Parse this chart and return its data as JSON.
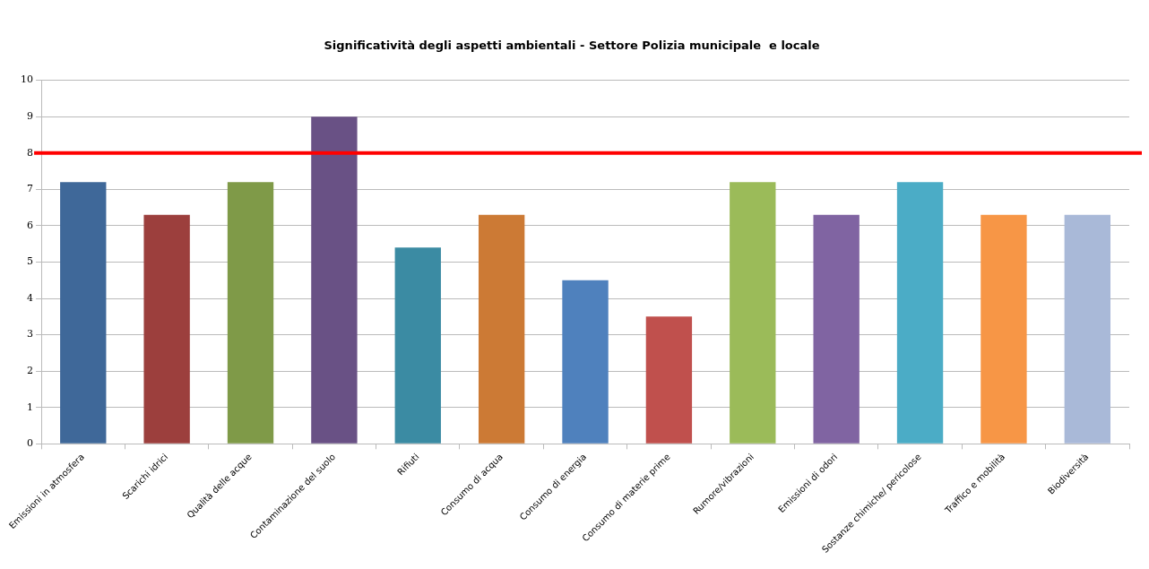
{
  "chart_data": {
    "type": "bar",
    "title": "Significatività degli aspetti ambientali - Settore Polizia municipale  e locale",
    "categories": [
      "Emissioni in atmosfera",
      "Scarichi idrici",
      "Qualità delle acque",
      "Contaminazione del suolo",
      "Rifiuti",
      "Consumo di acqua",
      "Consumo di energia",
      "Consumo di materie prime",
      "Rumore/vibrazioni",
      "Emissioni di odori",
      "Sostanze chimiche/ pericolose",
      "Traffico e mobilità",
      "Biodiversità"
    ],
    "values": [
      7.2,
      6.3,
      7.2,
      9,
      5.4,
      6.3,
      4.5,
      3.5,
      7.2,
      6.3,
      7.2,
      6.3,
      6.3
    ],
    "colors": [
      "#3f6899",
      "#9c3f3d",
      "#7f9a48",
      "#695185",
      "#3b8ba3",
      "#cc7a35",
      "#4f81bd",
      "#c0504d",
      "#9bbb59",
      "#8064a2",
      "#4bacc6",
      "#f79646",
      "#a9b9d8"
    ],
    "ylim": [
      0,
      10
    ],
    "yticks": [
      0,
      1,
      2,
      3,
      4,
      5,
      6,
      7,
      8,
      9,
      10
    ],
    "grid": "y",
    "legend": false,
    "ref_lines": [
      {
        "axis": "y",
        "value": 8,
        "color": "#ff0000"
      }
    ]
  }
}
